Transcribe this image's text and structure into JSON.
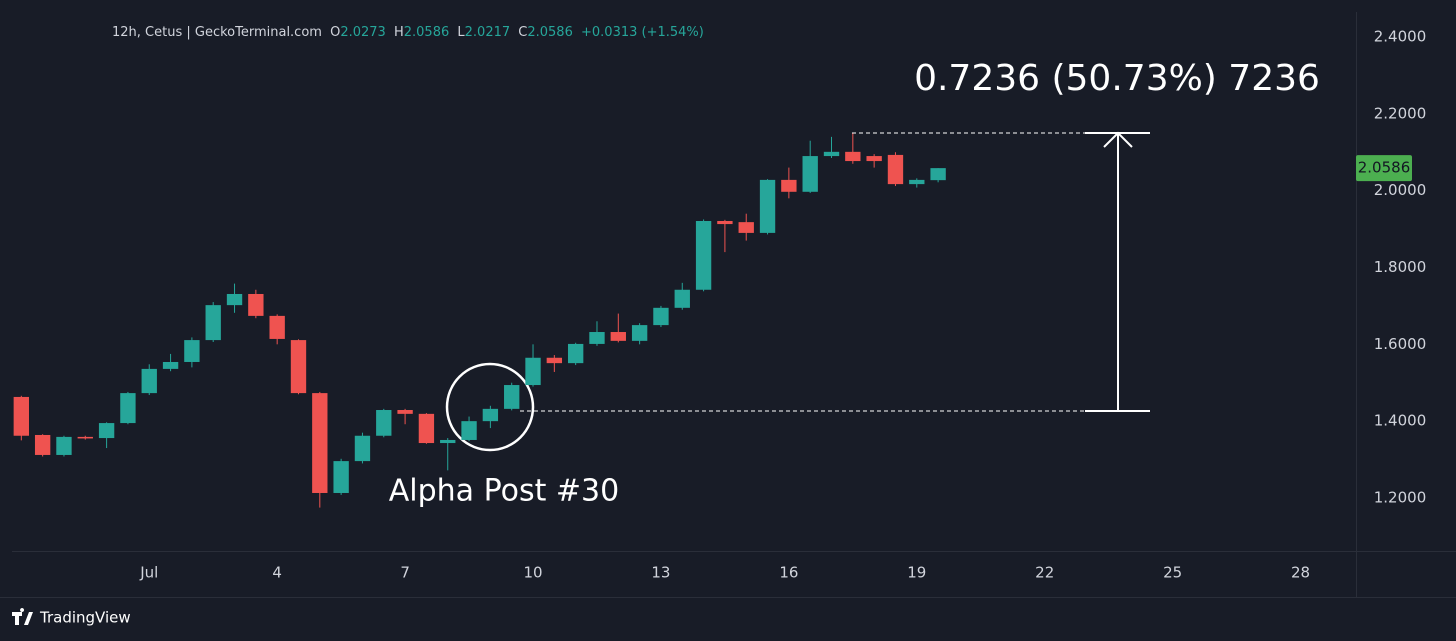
{
  "chart_data": {
    "type": "candlestick",
    "header": {
      "symbol": "12h, Cetus | GeckoTerminal.com",
      "o": "O",
      "h": "H",
      "l": "L",
      "c": "C",
      "change": "+0.0313 (+1.54%)"
    },
    "ohlc": [
      [
        1.463,
        1.466,
        1.35,
        1.362
      ],
      [
        1.364,
        1.366,
        1.308,
        1.312
      ],
      [
        1.312,
        1.362,
        1.308,
        1.359
      ],
      [
        1.359,
        1.362,
        1.352,
        1.355
      ],
      [
        1.356,
        1.397,
        1.33,
        1.395
      ],
      [
        1.395,
        1.476,
        1.392,
        1.473
      ],
      [
        1.473,
        1.548,
        1.468,
        1.536
      ],
      [
        1.536,
        1.575,
        1.53,
        1.554
      ],
      [
        1.554,
        1.618,
        1.54,
        1.611
      ],
      [
        1.611,
        1.71,
        1.606,
        1.702
      ],
      [
        1.702,
        1.758,
        1.682,
        1.731
      ],
      [
        1.731,
        1.742,
        1.668,
        1.674
      ],
      [
        1.674,
        1.678,
        1.6,
        1.614
      ],
      [
        1.611,
        1.613,
        1.47,
        1.473
      ],
      [
        1.473,
        1.476,
        1.175,
        1.213
      ],
      [
        1.213,
        1.302,
        1.208,
        1.296
      ],
      [
        1.296,
        1.37,
        1.29,
        1.362
      ],
      [
        1.362,
        1.432,
        1.358,
        1.429
      ],
      [
        1.429,
        1.432,
        1.392,
        1.419
      ],
      [
        1.419,
        1.421,
        1.341,
        1.343
      ],
      [
        1.343,
        1.356,
        1.272,
        1.351
      ],
      [
        1.351,
        1.412,
        1.348,
        1.4
      ],
      [
        1.4,
        1.44,
        1.382,
        1.432
      ],
      [
        1.432,
        1.5,
        1.428,
        1.494
      ],
      [
        1.494,
        1.6,
        1.49,
        1.565
      ],
      [
        1.565,
        1.572,
        1.528,
        1.551
      ],
      [
        1.551,
        1.604,
        1.546,
        1.601
      ],
      [
        1.601,
        1.66,
        1.596,
        1.632
      ],
      [
        1.632,
        1.68,
        1.605,
        1.609
      ],
      [
        1.609,
        1.655,
        1.6,
        1.65
      ],
      [
        1.65,
        1.7,
        1.645,
        1.695
      ],
      [
        1.695,
        1.76,
        1.69,
        1.742
      ],
      [
        1.742,
        1.925,
        1.738,
        1.921
      ],
      [
        1.921,
        1.924,
        1.84,
        1.913
      ],
      [
        1.918,
        1.94,
        1.87,
        1.89
      ],
      [
        1.89,
        2.03,
        1.886,
        2.028
      ],
      [
        2.028,
        2.06,
        1.98,
        1.997
      ],
      [
        1.997,
        2.13,
        1.994,
        2.09
      ],
      [
        2.09,
        2.14,
        2.085,
        2.101
      ],
      [
        2.101,
        2.15,
        2.07,
        2.077
      ],
      [
        2.09,
        2.095,
        2.06,
        2.077
      ],
      [
        2.093,
        2.1,
        2.012,
        2.017
      ],
      [
        2.017,
        2.032,
        2.008,
        2.028
      ],
      [
        2.0273,
        2.0586,
        2.0217,
        2.0586
      ]
    ],
    "up_color": "#26a69a",
    "down_color": "#ef5350",
    "xlim": [
      -1,
      62.6
    ],
    "xticks": [
      {
        "value": 6,
        "label": "Jul"
      },
      {
        "value": 12,
        "label": "4"
      },
      {
        "value": 18,
        "label": "7"
      },
      {
        "value": 24,
        "label": "10"
      },
      {
        "value": 30,
        "label": "13"
      },
      {
        "value": 36,
        "label": "16"
      },
      {
        "value": 42,
        "label": "19"
      },
      {
        "value": 48,
        "label": "22"
      },
      {
        "value": 54,
        "label": "25"
      },
      {
        "value": 60,
        "label": "28"
      }
    ],
    "ylim": [
      1.062,
      2.465
    ],
    "yticks": [
      {
        "value": 1.2,
        "label": "1.2000"
      },
      {
        "value": 1.4,
        "label": "1.4000"
      },
      {
        "value": 1.6,
        "label": "1.6000"
      },
      {
        "value": 1.8,
        "label": "1.8000"
      },
      {
        "value": 2.0,
        "label": "2.0000"
      },
      {
        "value": 2.2,
        "label": "2.2000"
      },
      {
        "value": 2.4,
        "label": "2.4000"
      }
    ],
    "measure": {
      "low": 1.4264,
      "high": 2.15,
      "label": "0.7236 (50.73%) 7236"
    },
    "annotation": "Alpha Post #30",
    "brand": "TradingView"
  }
}
